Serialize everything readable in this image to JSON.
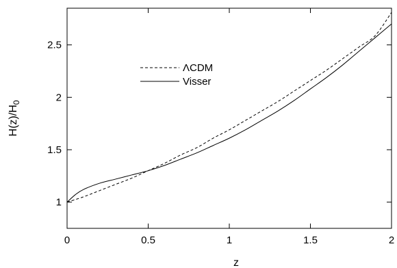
{
  "chart_data": {
    "type": "line",
    "xlabel": "z",
    "ylabel": "H(z)/H",
    "ylabel_subscript": "0",
    "xlim": [
      0,
      2
    ],
    "ylim": [
      0.75,
      2.85
    ],
    "xticks": [
      0,
      0.5,
      1,
      1.5,
      2
    ],
    "xtick_labels": [
      "0",
      "0.5",
      "1",
      "1.5",
      "2"
    ],
    "yticks": [
      1,
      1.5,
      2,
      2.5
    ],
    "ytick_labels": [
      "1",
      "1.5",
      "2",
      "2.5"
    ],
    "grid": false,
    "legend_position": "upper-left-center",
    "series": [
      {
        "name": "ΛCDM",
        "style": "dashed",
        "color": "#000000",
        "x": [
          0,
          0.1,
          0.2,
          0.3,
          0.4,
          0.5,
          0.6,
          0.7,
          0.8,
          0.9,
          1.0,
          1.1,
          1.2,
          1.3,
          1.4,
          1.5,
          1.6,
          1.7,
          1.8,
          1.9,
          2.0
        ],
        "y": [
          1.0,
          1.05,
          1.11,
          1.17,
          1.23,
          1.3,
          1.37,
          1.45,
          1.52,
          1.61,
          1.69,
          1.78,
          1.87,
          1.96,
          2.06,
          2.16,
          2.26,
          2.37,
          2.48,
          2.59,
          2.81
        ]
      },
      {
        "name": "Visser",
        "style": "solid",
        "color": "#000000",
        "x": [
          0,
          0.05,
          0.1,
          0.2,
          0.3,
          0.4,
          0.5,
          0.6,
          0.7,
          0.8,
          0.9,
          1.0,
          1.1,
          1.2,
          1.3,
          1.4,
          1.5,
          1.6,
          1.7,
          1.8,
          1.9,
          2.0
        ],
        "y": [
          1.0,
          1.07,
          1.12,
          1.18,
          1.22,
          1.26,
          1.3,
          1.35,
          1.41,
          1.47,
          1.54,
          1.61,
          1.69,
          1.78,
          1.87,
          1.97,
          2.08,
          2.19,
          2.31,
          2.44,
          2.57,
          2.7
        ]
      }
    ]
  }
}
